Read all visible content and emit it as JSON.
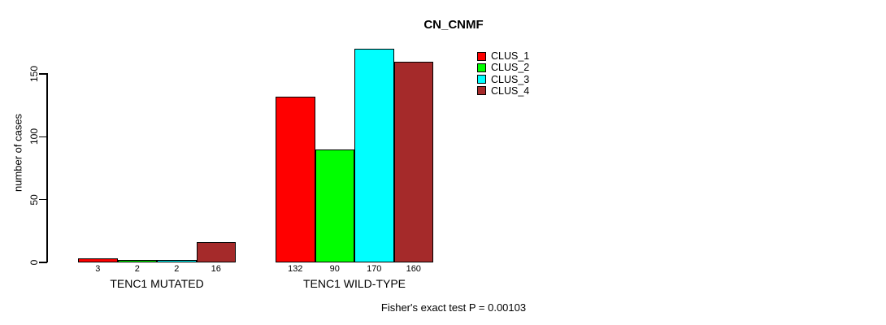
{
  "chart": {
    "title": "CN_CNMF",
    "ylabel": "number of cases",
    "footer": "Fisher's exact test P = 0.00103"
  },
  "chart_data": {
    "type": "bar",
    "title": "CN_CNMF",
    "xlabel": "",
    "ylabel": "number of cases",
    "categories": [
      "TENC1 MUTATED",
      "TENC1 WILD-TYPE"
    ],
    "series": [
      {
        "name": "CLUS_1",
        "color": "#ff0000",
        "values": [
          3,
          132
        ]
      },
      {
        "name": "CLUS_2",
        "color": "#00ff00",
        "values": [
          2,
          90
        ]
      },
      {
        "name": "CLUS_3",
        "color": "#00ffff",
        "values": [
          2,
          170
        ]
      },
      {
        "name": "CLUS_4",
        "color": "#a52a2a",
        "values": [
          16,
          160
        ]
      }
    ],
    "bar_value_labels": [
      [
        "3",
        "2",
        "2",
        "16"
      ],
      [
        "132",
        "90",
        "170",
        "160"
      ]
    ],
    "yticks": [
      0,
      50,
      100,
      150
    ],
    "ylim": [
      0,
      175
    ],
    "grid": false,
    "legend_position": "top-right",
    "bar_border_color": "#000000",
    "background_color": "#ffffff",
    "annotation": "Fisher's exact test P = 0.00103"
  }
}
